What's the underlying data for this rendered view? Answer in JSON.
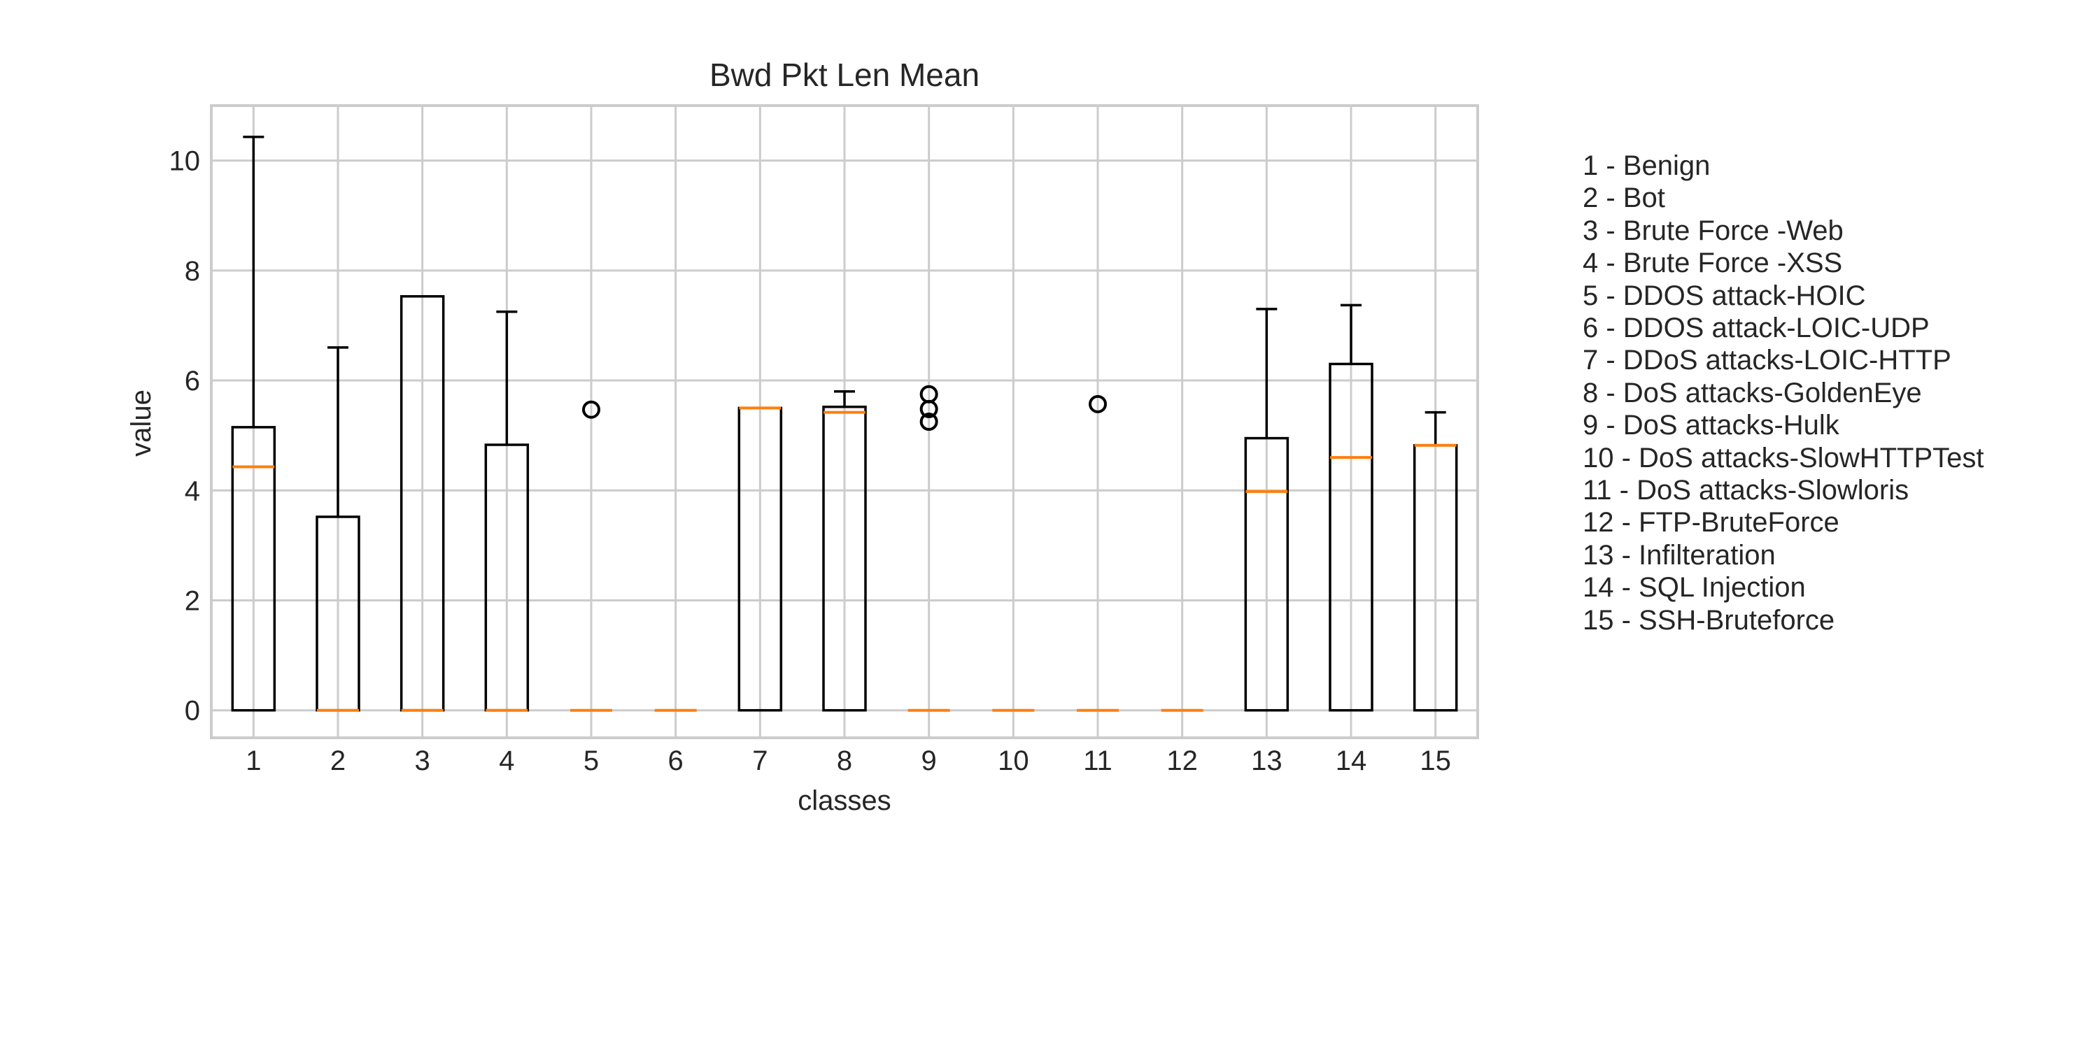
{
  "chart_data": {
    "type": "boxplot",
    "title": "Bwd Pkt Len Mean",
    "xlabel": "classes",
    "ylabel": "value",
    "ylim": [
      -0.5,
      11
    ],
    "yticks": [
      0,
      2,
      4,
      6,
      8,
      10
    ],
    "grid": true,
    "categories": [
      "1",
      "2",
      "3",
      "4",
      "5",
      "6",
      "7",
      "8",
      "9",
      "10",
      "11",
      "12",
      "13",
      "14",
      "15"
    ],
    "boxes": [
      {
        "label": "1",
        "whislo": 0,
        "q1": 0,
        "med": 4.43,
        "q3": 5.15,
        "whishi": 10.43,
        "fliers": []
      },
      {
        "label": "2",
        "whislo": 0,
        "q1": 0,
        "med": 0,
        "q3": 3.52,
        "whishi": 6.6,
        "fliers": []
      },
      {
        "label": "3",
        "whislo": 0,
        "q1": 0,
        "med": 0,
        "q3": 7.53,
        "whishi": 7.53,
        "fliers": []
      },
      {
        "label": "4",
        "whislo": 0,
        "q1": 0,
        "med": 0,
        "q3": 4.83,
        "whishi": 7.25,
        "fliers": []
      },
      {
        "label": "5",
        "whislo": 0,
        "q1": 0,
        "med": 0,
        "q3": 0,
        "whishi": 0,
        "fliers": [
          5.47
        ]
      },
      {
        "label": "6",
        "whislo": 0,
        "q1": 0,
        "med": 0,
        "q3": 0,
        "whishi": 0,
        "fliers": []
      },
      {
        "label": "7",
        "whislo": 0,
        "q1": 0,
        "med": 5.5,
        "q3": 5.5,
        "whishi": 5.5,
        "fliers": []
      },
      {
        "label": "8",
        "whislo": 0,
        "q1": 0,
        "med": 5.42,
        "q3": 5.52,
        "whishi": 5.8,
        "fliers": []
      },
      {
        "label": "9",
        "whislo": 0,
        "q1": 0,
        "med": 0,
        "q3": 0,
        "whishi": 0,
        "fliers": [
          5.75,
          5.48,
          5.25
        ]
      },
      {
        "label": "10",
        "whislo": 0,
        "q1": 0,
        "med": 0,
        "q3": 0,
        "whishi": 0,
        "fliers": []
      },
      {
        "label": "11",
        "whislo": 0,
        "q1": 0,
        "med": 0,
        "q3": 0,
        "whishi": 0,
        "fliers": [
          5.57
        ]
      },
      {
        "label": "12",
        "whislo": 0,
        "q1": 0,
        "med": 0,
        "q3": 0,
        "whishi": 0,
        "fliers": []
      },
      {
        "label": "13",
        "whislo": 0,
        "q1": 0,
        "med": 3.98,
        "q3": 4.95,
        "whishi": 7.3,
        "fliers": []
      },
      {
        "label": "14",
        "whislo": 0,
        "q1": 0,
        "med": 4.6,
        "q3": 6.3,
        "whishi": 7.37,
        "fliers": []
      },
      {
        "label": "15",
        "whislo": 0,
        "q1": 0,
        "med": 4.82,
        "q3": 4.82,
        "whishi": 5.42,
        "fliers": []
      }
    ],
    "legend_placement": "right",
    "legend": [
      "1 - Benign",
      "2 - Bot",
      "3 - Brute Force -Web",
      "4 - Brute Force -XSS",
      "5 - DDOS attack-HOIC",
      "6 - DDOS attack-LOIC-UDP",
      "7 - DDoS attacks-LOIC-HTTP",
      "8 - DoS attacks-GoldenEye",
      "9 - DoS attacks-Hulk",
      "10 - DoS attacks-SlowHTTPTest",
      "11 - DoS attacks-Slowloris",
      "12 - FTP-BruteForce",
      "13 - Infilteration",
      "14 - SQL Injection",
      "15 - SSH-Bruteforce"
    ],
    "colors": {
      "box": "#000000",
      "median": "#ff7f0e",
      "grid": "#cccccc",
      "spine": "#cccccc",
      "text": "#262626"
    }
  }
}
